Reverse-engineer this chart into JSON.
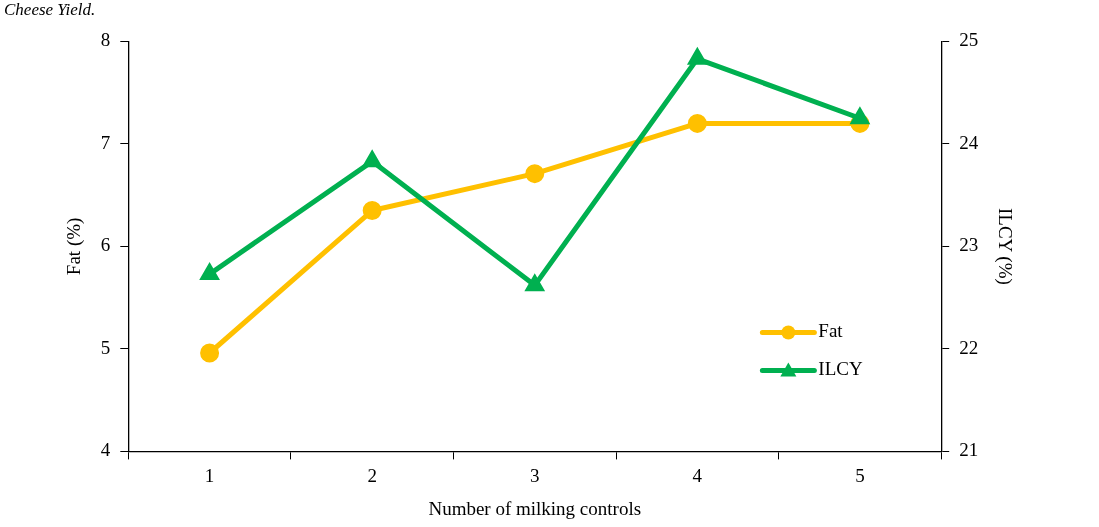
{
  "chart_data": {
    "type": "line",
    "annotations": [
      "Cheese Yield."
    ],
    "xlabel": "Number of milking controls",
    "ylabel": "Fat (%)",
    "y2label": "ILCY (%)",
    "categories": [
      "1",
      "2",
      "3",
      "4",
      "5"
    ],
    "series": [
      {
        "name": "Fat",
        "color": "#ffc000",
        "marker": "circle",
        "values": [
          4.96,
          6.35,
          6.71,
          7.2,
          7.2
        ]
      },
      {
        "name": "ILCY",
        "color": "#00b050",
        "marker": "triangle",
        "axis": "y2",
        "values": [
          22.73,
          23.83,
          22.62,
          24.83,
          24.25
        ]
      }
    ],
    "ylim": [
      4,
      8
    ],
    "yticks": [
      4,
      5,
      6,
      7,
      8
    ],
    "y2lim": [
      21,
      25
    ],
    "y2ticks": [
      21,
      22,
      23,
      24,
      25
    ],
    "grid": false,
    "legend": "right"
  }
}
